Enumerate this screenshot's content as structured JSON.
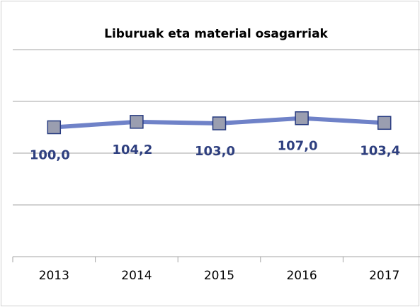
{
  "chart_data": {
    "type": "line",
    "title": "Liburuak eta material osagarriak",
    "categories": [
      "2013",
      "2014",
      "2015",
      "2016",
      "2017"
    ],
    "series": [
      {
        "name": "Liburuak eta material osagarriak",
        "color": "#6f82c8",
        "values": [
          100.0,
          104.2,
          103.0,
          107.0,
          103.4
        ],
        "value_labels": [
          "100,0",
          "104,2",
          "103,0",
          "107,0",
          "103,4"
        ]
      }
    ],
    "ylim": [
      0,
      160
    ],
    "yticks": [
      0,
      40,
      80,
      120,
      160
    ],
    "grid": true
  }
}
